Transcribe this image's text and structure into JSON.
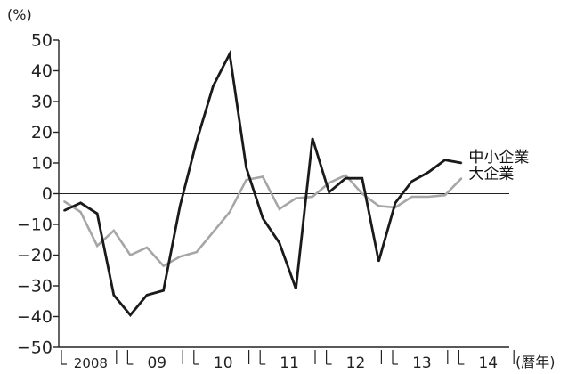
{
  "chart_data": {
    "type": "line",
    "y_unit_label": "(%)",
    "x_unit_label": "(暦年)",
    "ylim": [
      -50,
      50
    ],
    "yticks": [
      50,
      40,
      30,
      20,
      10,
      0,
      -10,
      -20,
      -30,
      -40,
      -50
    ],
    "ytick_labels": [
      "50",
      "40",
      "30",
      "20",
      "10",
      "0",
      "−10",
      "−20",
      "−30",
      "−40",
      "−50"
    ],
    "grid": false,
    "zero_line": true,
    "year_groups": [
      {
        "label": "2008",
        "quarters": 4
      },
      {
        "label": "09",
        "quarters": 4
      },
      {
        "label": "10",
        "quarters": 4
      },
      {
        "label": "11",
        "quarters": 4
      },
      {
        "label": "12",
        "quarters": 4
      },
      {
        "label": "13",
        "quarters": 4
      },
      {
        "label": "14",
        "quarters": 4
      }
    ],
    "series": [
      {
        "name": "中小企業",
        "color": "#1a1a1a",
        "values": [
          -5.5,
          -3,
          -6.5,
          -33,
          -39.5,
          -33,
          -31.5,
          -4,
          17,
          35,
          45.5,
          8.5,
          -8,
          -16,
          -31,
          18,
          0.5,
          5,
          5,
          -22,
          -3,
          4,
          7,
          11,
          10
        ]
      },
      {
        "name": "大企業",
        "color": "#a6a6a6",
        "values": [
          -2.5,
          -6,
          -17,
          -12,
          -20,
          -17.5,
          -23.5,
          -20.5,
          -19,
          -12.5,
          -6,
          4.5,
          5.5,
          -5,
          -1.5,
          -1,
          3.5,
          6,
          0,
          -4,
          -4.5,
          -1,
          -1,
          -0.5,
          5
        ]
      }
    ]
  }
}
